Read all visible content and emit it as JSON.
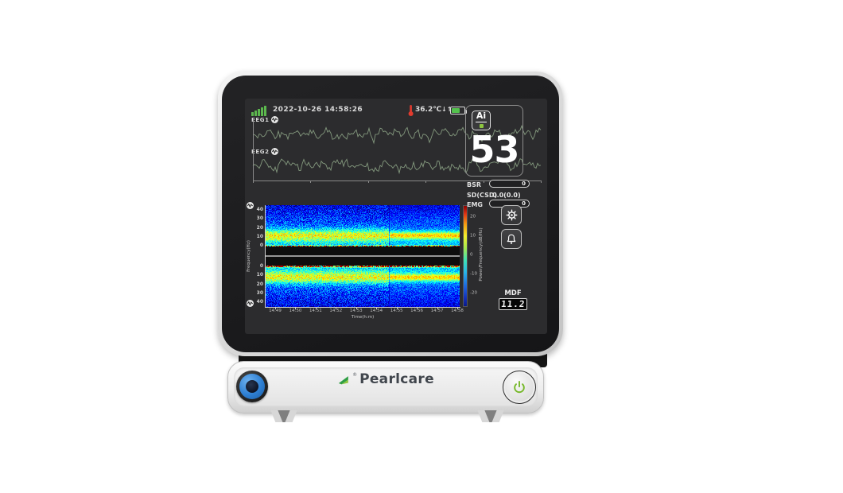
{
  "device": {
    "brand": "Pearlcare",
    "brand_mark": "®"
  },
  "status_bar": {
    "datetime": "2022-10-26 14:58:26",
    "temperature": "36.2℃",
    "arrows": "↓↑",
    "battery_percent": 65
  },
  "eeg": {
    "channel1_label": "EEG1",
    "channel2_label": "EEG2"
  },
  "index_panel": {
    "logo_text": "Ai",
    "value": "53"
  },
  "metrics": {
    "bsr": {
      "label": "BSR",
      "value": "0"
    },
    "sd": {
      "label": "SD(CSD)",
      "value": "0.0(0.0)"
    },
    "emg": {
      "label": "EMG",
      "value": "0"
    }
  },
  "mdf": {
    "label": "MDF",
    "value": "11.2"
  },
  "spectrogram": {
    "ylabel": "Frequency(Hz)",
    "xlabel": "Time(h:m)",
    "freq_ticks_top": [
      "40",
      "30",
      "20",
      "10",
      "0"
    ],
    "freq_ticks_bottom": [
      "0",
      "10",
      "20",
      "30",
      "40"
    ],
    "time_ticks": [
      "14:49",
      "14:50",
      "14:51",
      "14:52",
      "14:53",
      "14:54",
      "14:55",
      "14:56",
      "14:57",
      "14:58"
    ],
    "colorbar_label": "Power/Frequency(dB/Hz)",
    "colorbar_ticks": [
      "20",
      "10",
      "0",
      "-10",
      "-20"
    ]
  },
  "colors": {
    "accent_green": "#76b82a",
    "signal_green": "#5cb84e",
    "battery_green": "#54c24e",
    "waveform_green": "#84997e",
    "thermometer_red": "#e23b2e"
  }
}
